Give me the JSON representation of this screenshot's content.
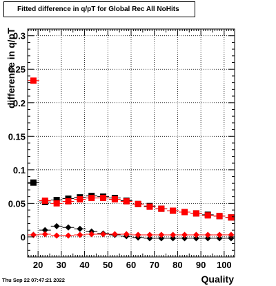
{
  "title": "Fitted difference in q/pT for Global Rec All NoHits",
  "timestamp": "Thu Sep 22 07:47:21 2022",
  "colors": {
    "black_series": "#000000",
    "red_series": "#ff0000",
    "grid": "#000000"
  },
  "chart_data": {
    "type": "scatter",
    "title": "Fitted difference in q/pT for Global Rec All NoHits",
    "xlabel": "Quality",
    "ylabel": "difference in q/pT",
    "xlim": [
      15.5,
      104.5
    ],
    "ylim": [
      -0.03,
      0.31
    ],
    "x_ticks": [
      20,
      30,
      40,
      50,
      60,
      70,
      80,
      90,
      100
    ],
    "x_tick_labels": [
      "20",
      "30",
      "40",
      "50",
      "60",
      "70",
      "80",
      "90",
      "100"
    ],
    "y_ticks": [
      0,
      0.05,
      0.1,
      0.15,
      0.2,
      0.25,
      0.3
    ],
    "y_tick_labels": [
      "0",
      "0.05",
      "0.1",
      "0.15",
      "0.2",
      "0.25",
      "0.3"
    ],
    "grid": true,
    "series": [
      {
        "marker": "square",
        "color": "#000000",
        "x": [
          18,
          23,
          28,
          33,
          38,
          43,
          48,
          53,
          58,
          63,
          68,
          73,
          78,
          83,
          88,
          93,
          98,
          103
        ],
        "y": [
          0.081,
          0.052,
          0.055,
          0.057,
          0.059,
          0.061,
          0.06,
          0.058,
          0.054,
          0.049,
          0.046,
          0.042,
          0.039,
          0.037,
          0.035,
          0.033,
          0.031,
          0.029
        ],
        "yerr": [
          0.004,
          0.003,
          0.003,
          0.003,
          0.003,
          0.003,
          0.003,
          0.003,
          0.003,
          0.003,
          0.003,
          0.003,
          0.003,
          0.003,
          0.003,
          0.003,
          0.003,
          0.003
        ]
      },
      {
        "marker": "square",
        "color": "#ff0000",
        "x": [
          18,
          23,
          28,
          33,
          38,
          43,
          48,
          53,
          58,
          63,
          68,
          73,
          78,
          83,
          88,
          93,
          98,
          103
        ],
        "y": [
          0.233,
          0.054,
          0.05,
          0.053,
          0.056,
          0.058,
          0.058,
          0.056,
          0.053,
          0.049,
          0.045,
          0.042,
          0.039,
          0.037,
          0.035,
          0.032,
          0.031,
          0.029
        ],
        "yerr": [
          0.004,
          0.003,
          0.003,
          0.003,
          0.003,
          0.003,
          0.003,
          0.003,
          0.003,
          0.003,
          0.003,
          0.003,
          0.003,
          0.003,
          0.003,
          0.003,
          0.003,
          0.003
        ]
      },
      {
        "marker": "diamond",
        "color": "#000000",
        "x": [
          18,
          23,
          28,
          33,
          38,
          43,
          48,
          53,
          58,
          63,
          68,
          73,
          78,
          83,
          88,
          93,
          98,
          103
        ],
        "y": [
          0.003,
          0.01,
          0.016,
          0.014,
          0.012,
          0.008,
          0.005,
          0.003,
          0.001,
          -0.001,
          -0.002,
          -0.002,
          -0.002,
          -0.002,
          -0.002,
          -0.002,
          -0.002,
          -0.002
        ],
        "yerr": [
          0.002,
          0.002,
          0.002,
          0.002,
          0.002,
          0.002,
          0.002,
          0.002,
          0.002,
          0.002,
          0.002,
          0.002,
          0.002,
          0.002,
          0.002,
          0.002,
          0.002,
          0.002
        ]
      },
      {
        "marker": "diamond",
        "color": "#ff0000",
        "x": [
          18,
          23,
          28,
          33,
          38,
          43,
          48,
          53,
          58,
          63,
          68,
          73,
          78,
          83,
          88,
          93,
          98,
          103
        ],
        "y": [
          0.003,
          0.004,
          0.002,
          0.002,
          0.003,
          0.004,
          0.004,
          0.004,
          0.004,
          0.003,
          0.003,
          0.003,
          0.003,
          0.003,
          0.003,
          0.003,
          0.003,
          0.003
        ],
        "yerr": [
          0.002,
          0.002,
          0.002,
          0.002,
          0.002,
          0.002,
          0.002,
          0.002,
          0.002,
          0.002,
          0.002,
          0.002,
          0.002,
          0.002,
          0.002,
          0.002,
          0.002,
          0.002
        ]
      }
    ]
  }
}
